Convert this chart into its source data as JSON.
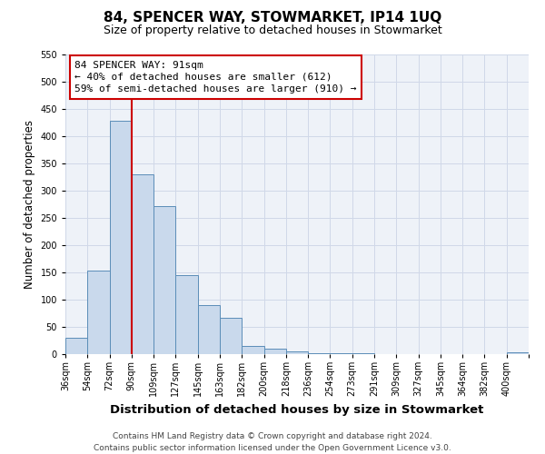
{
  "title": "84, SPENCER WAY, STOWMARKET, IP14 1UQ",
  "subtitle": "Size of property relative to detached houses in Stowmarket",
  "xlabel": "Distribution of detached houses by size in Stowmarket",
  "ylabel": "Number of detached properties",
  "bin_labels": [
    "36sqm",
    "54sqm",
    "72sqm",
    "90sqm",
    "109sqm",
    "127sqm",
    "145sqm",
    "163sqm",
    "182sqm",
    "200sqm",
    "218sqm",
    "236sqm",
    "254sqm",
    "273sqm",
    "291sqm",
    "309sqm",
    "327sqm",
    "345sqm",
    "364sqm",
    "382sqm",
    "400sqm"
  ],
  "bar_heights": [
    30,
    153,
    428,
    330,
    272,
    145,
    90,
    67,
    15,
    10,
    5,
    2,
    1,
    1,
    0,
    0,
    0,
    0,
    0,
    0,
    3
  ],
  "bar_color": "#c9d9ec",
  "bar_edge_color": "#5b8db8",
  "grid_color": "#d0d8e8",
  "background_color": "#eef2f8",
  "vline_x": 3,
  "vline_color": "#cc0000",
  "annotation_title": "84 SPENCER WAY: 91sqm",
  "annotation_line1": "← 40% of detached houses are smaller (612)",
  "annotation_line2": "59% of semi-detached houses are larger (910) →",
  "annotation_box_color": "#cc0000",
  "ylim": [
    0,
    550
  ],
  "yticks": [
    0,
    50,
    100,
    150,
    200,
    250,
    300,
    350,
    400,
    450,
    500,
    550
  ],
  "footer1": "Contains HM Land Registry data © Crown copyright and database right 2024.",
  "footer2": "Contains public sector information licensed under the Open Government Licence v3.0.",
  "title_fontsize": 11,
  "subtitle_fontsize": 9,
  "xlabel_fontsize": 9.5,
  "ylabel_fontsize": 8.5,
  "tick_fontsize": 7,
  "annotation_fontsize": 8,
  "footer_fontsize": 6.5
}
